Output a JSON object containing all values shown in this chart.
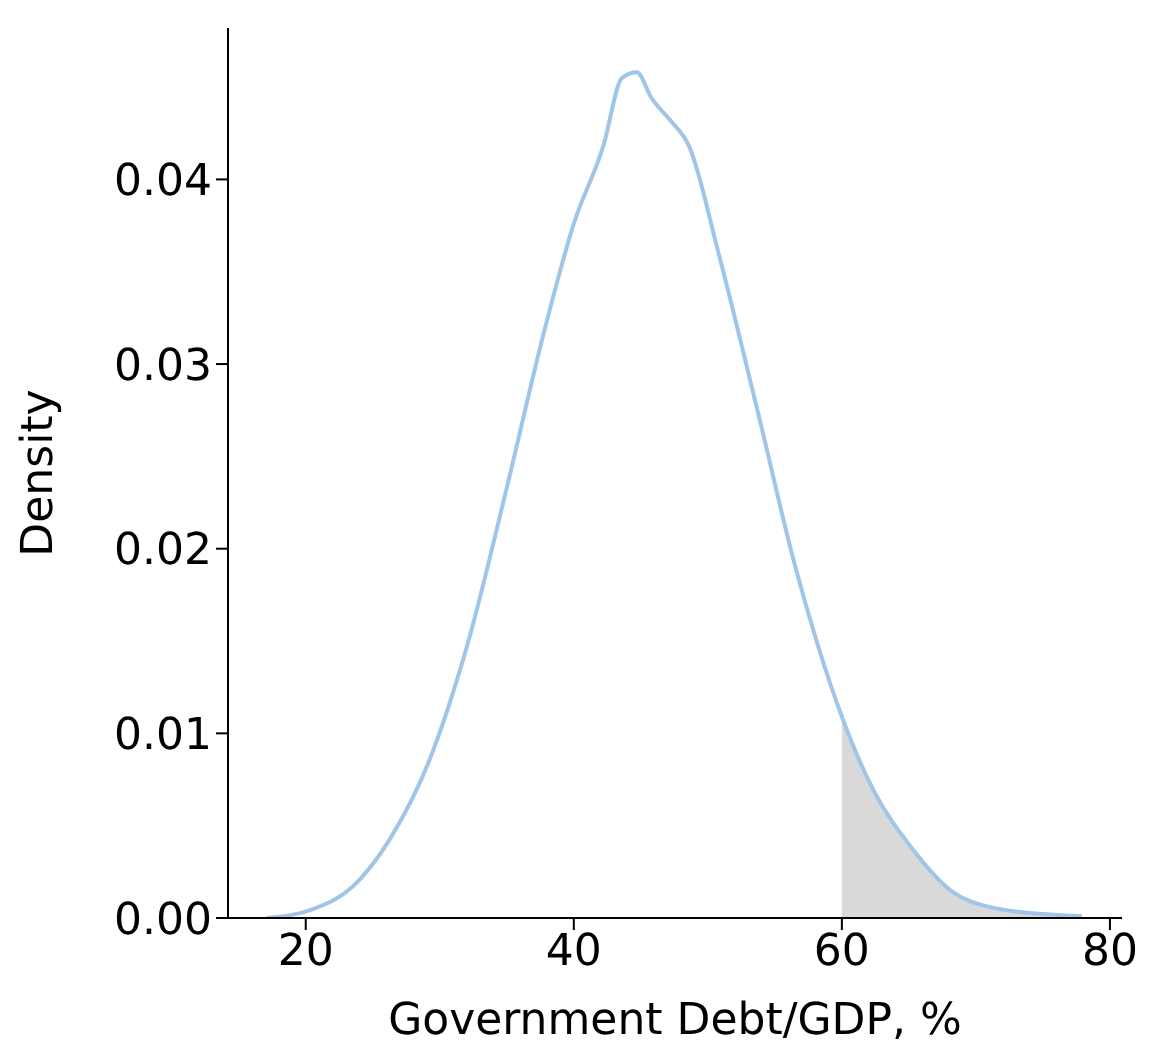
{
  "chart_data": {
    "type": "line",
    "xlabel": "Government Debt/GDP, %",
    "ylabel": "Density",
    "xlim": [
      14.2,
      80.9
    ],
    "ylim": [
      0,
      0.0482
    ],
    "xticks": [
      20,
      40,
      60,
      80
    ],
    "yticks": [
      {
        "value": 0,
        "label": "0.00"
      },
      {
        "value": 0.01,
        "label": "0.01"
      },
      {
        "value": 0.02,
        "label": "0.02"
      },
      {
        "value": 0.03,
        "label": "0.03"
      },
      {
        "value": 0.04,
        "label": "0.04"
      }
    ],
    "grid": false,
    "legend": false,
    "series": [
      {
        "type": "area",
        "color": "#d9d9d9",
        "x": [
          60,
          62.3,
          65.2,
          68.1,
          71,
          75.3,
          77.9
        ],
        "values": [
          0.0109,
          0.007,
          0.0038,
          0.0015,
          0.0006,
          0.0002,
          0.0001
        ]
      },
      {
        "color": "#9fc5e8",
        "x": [
          17.1,
          20.6,
          23.5,
          26.3,
          29.2,
          32.1,
          35,
          37.8,
          40,
          42.2,
          43.6,
          44.7,
          45.8,
          47.2,
          48.6,
          50.8,
          53.7,
          56.5,
          60,
          62.3,
          65.2,
          68.1,
          71,
          75.3,
          77.9
        ],
        "values": [
          0,
          0.0005,
          0.0017,
          0.0043,
          0.0085,
          0.0149,
          0.0233,
          0.0318,
          0.0376,
          0.0418,
          0.0455,
          0.0458,
          0.0444,
          0.0432,
          0.0418,
          0.036,
          0.0275,
          0.0191,
          0.0109,
          0.007,
          0.0038,
          0.0015,
          0.0006,
          0.0002,
          0.0001
        ]
      }
    ]
  }
}
